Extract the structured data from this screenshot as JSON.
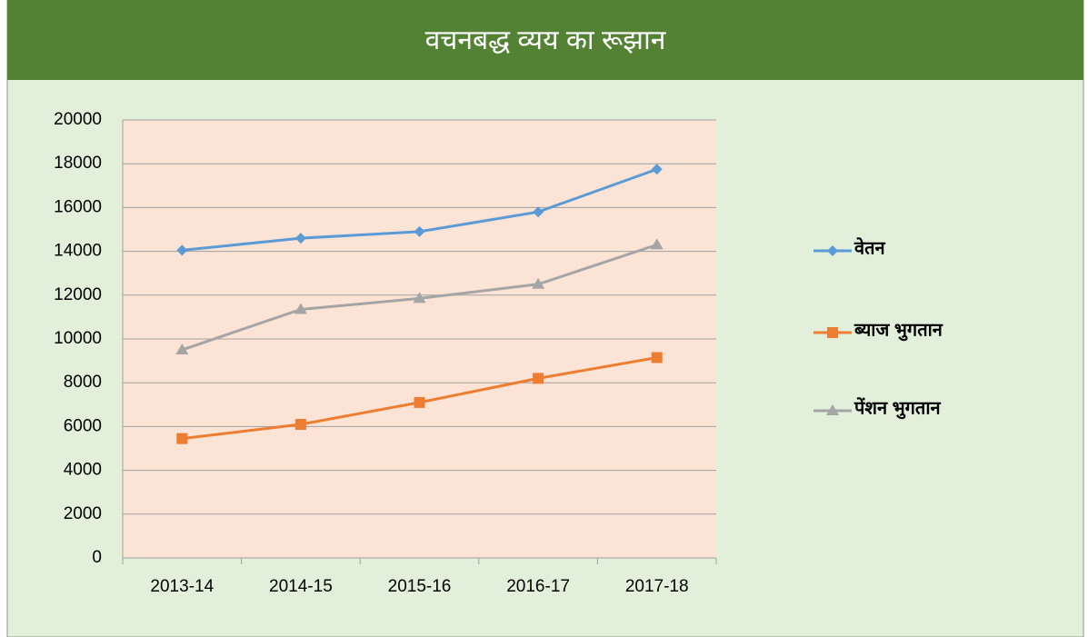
{
  "chart_data": {
    "type": "line",
    "title": "वचनबद्ध व्यय का रूझान",
    "categories": [
      "2013-14",
      "2014-15",
      "2015-16",
      "2016-17",
      "2017-18"
    ],
    "series": [
      {
        "name": "वेतन",
        "color": "#5b9bd5",
        "marker": "diamond",
        "values": [
          14050,
          14600,
          14900,
          15800,
          17750
        ]
      },
      {
        "name": "ब्याज भुगतान",
        "color": "#ed7d31",
        "marker": "square",
        "values": [
          5450,
          6100,
          7100,
          8200,
          9150
        ]
      },
      {
        "name": "पेंशन भुगतान",
        "color": "#a5a5a5",
        "marker": "triangle",
        "values": [
          9500,
          11350,
          11850,
          12500,
          14300
        ]
      }
    ],
    "ylim": [
      0,
      20000
    ],
    "yticks": [
      0,
      2000,
      4000,
      6000,
      8000,
      10000,
      12000,
      14000,
      16000,
      18000,
      20000
    ],
    "grid": true,
    "legend": "right"
  }
}
